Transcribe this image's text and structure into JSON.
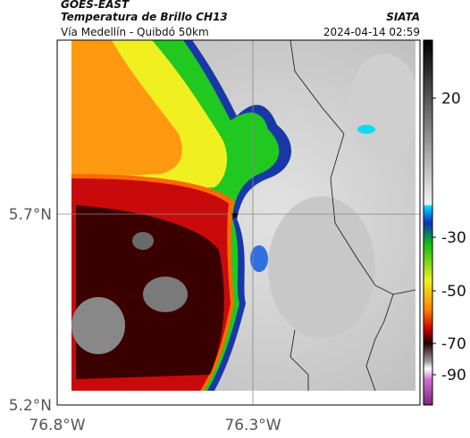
{
  "header": {
    "title": "GOES-EAST",
    "subtitle": "Temperatura de Brillo CH13",
    "route": "Vía Medellín - Quibdó 50km",
    "source": "SIATA",
    "timestamp": "2024-04-14 02:59"
  },
  "map": {
    "lat_labels": [
      "5.7°N",
      "5.2°N"
    ],
    "lon_labels": [
      "76.8°W",
      "76.3°W"
    ]
  },
  "colorbar": {
    "ticks": [
      "20",
      "-30",
      "-50",
      "-70",
      "-90"
    ]
  }
}
